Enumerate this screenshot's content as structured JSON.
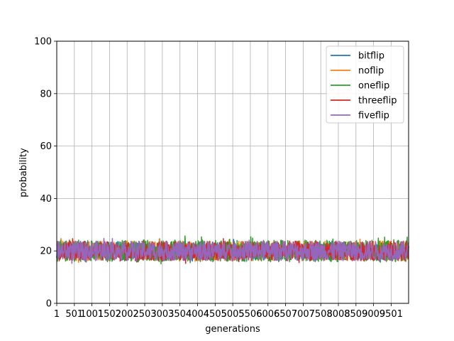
{
  "chart_data": {
    "type": "line",
    "title": "",
    "xlabel": "generations",
    "ylabel": "probability",
    "xlim": [
      1,
      2000
    ],
    "ylim": [
      0,
      100
    ],
    "x_ticks": [
      1,
      101,
      201,
      301,
      401,
      501,
      601,
      701,
      801,
      901,
      1001,
      1101,
      1201,
      1301,
      1401,
      1501,
      1601,
      1701,
      1801,
      1901
    ],
    "x_tick_labels": [
      "1",
      "501",
      "1001",
      "1502",
      "2002",
      "2503",
      "3003",
      "3504",
      "4004",
      "4505",
      "5005",
      "5506",
      "6006",
      "6507",
      "7007",
      "7508",
      "8008",
      "8509",
      "9009",
      "9501"
    ],
    "y_ticks": [
      0,
      20,
      40,
      60,
      80,
      100
    ],
    "y_tick_labels": [
      "0",
      "20",
      "40",
      "60",
      "80",
      "100"
    ],
    "grid": true,
    "legend_position": "top-right",
    "series": [
      {
        "name": "bitflip",
        "color": "#1f77b4",
        "mean": 20,
        "low": 16,
        "high": 25
      },
      {
        "name": "noflip",
        "color": "#ff7f0e",
        "mean": 20,
        "low": 15,
        "high": 25
      },
      {
        "name": "oneflip",
        "color": "#2ca02c",
        "mean": 20,
        "low": 15,
        "high": 26
      },
      {
        "name": "threeflip",
        "color": "#d62728",
        "mean": 20,
        "low": 15,
        "high": 25
      },
      {
        "name": "fiveflip",
        "color": "#9467bd",
        "mean": 20,
        "low": 15,
        "high": 25
      }
    ]
  }
}
